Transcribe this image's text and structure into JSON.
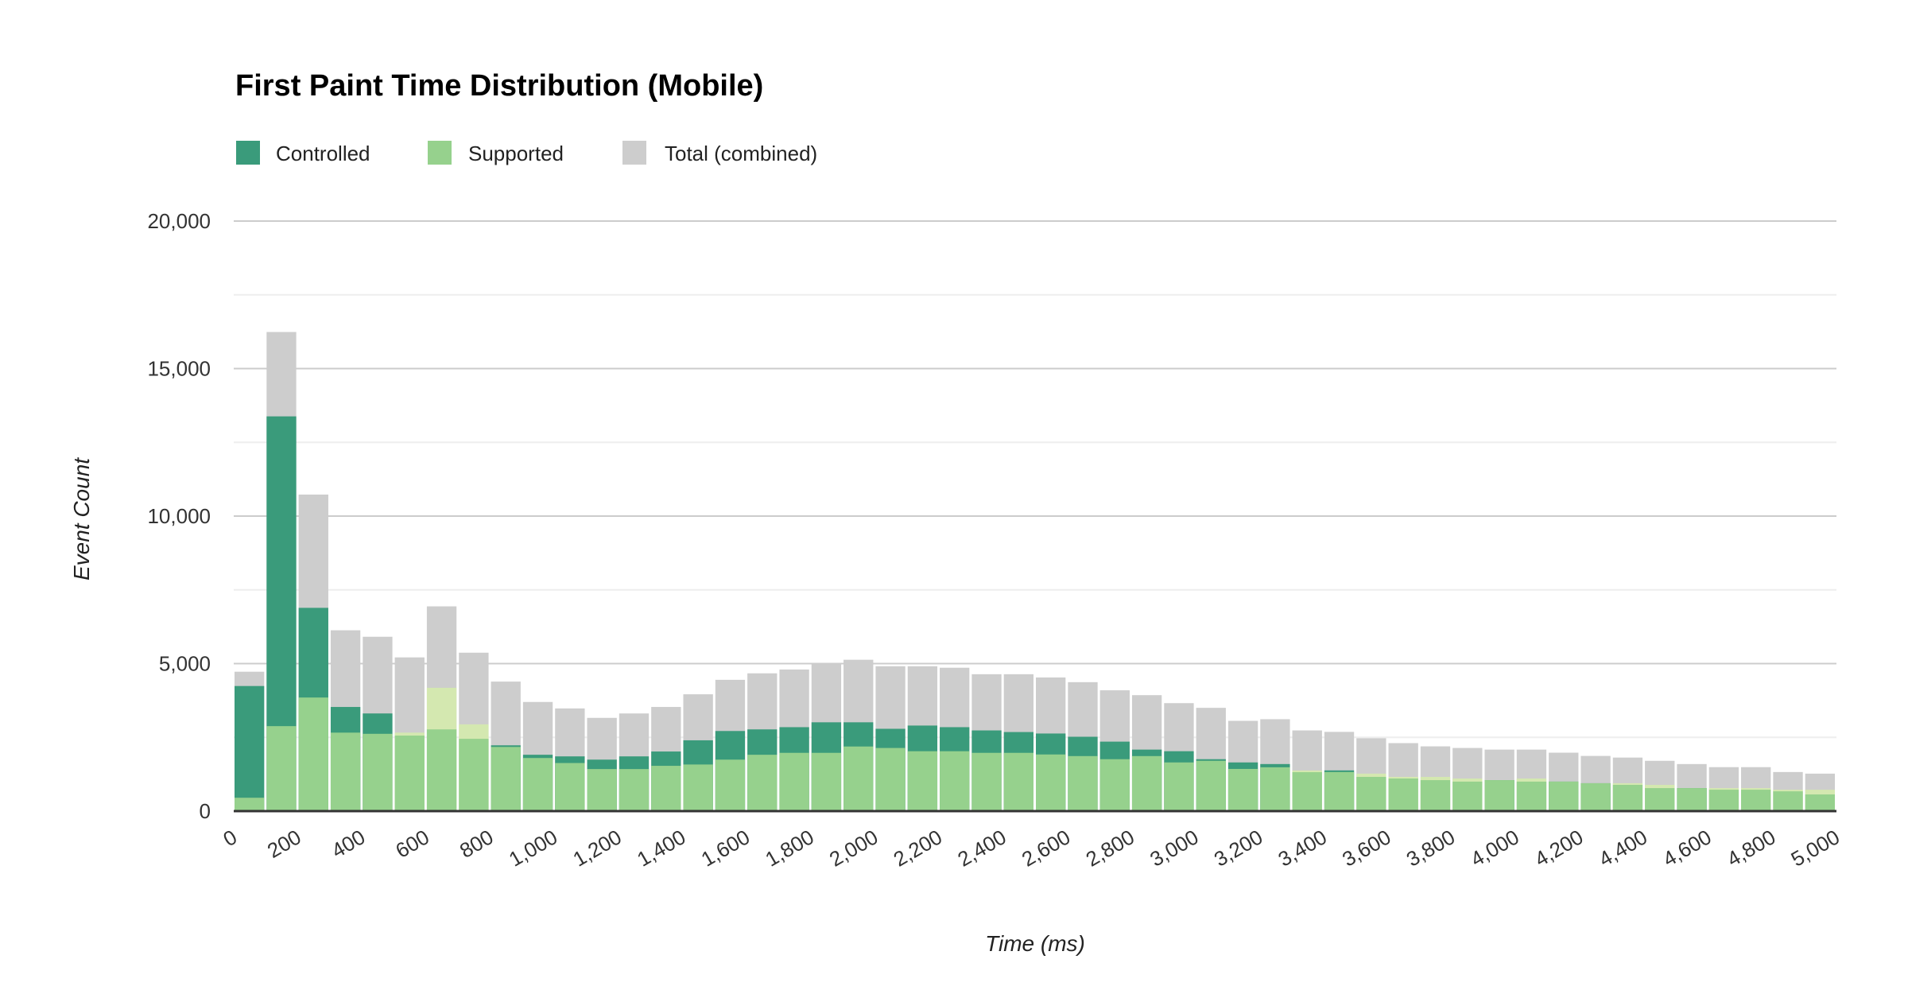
{
  "chart_data": {
    "type": "bar",
    "title": "First Paint Time Distribution (Mobile)",
    "xlabel": "Time (ms)",
    "ylabel": "Event Count",
    "xlim": [
      0,
      5000
    ],
    "ylim": [
      0,
      20000
    ],
    "bin_width": 100,
    "x_ticks": [
      "0",
      "200",
      "400",
      "600",
      "800",
      "1,000",
      "1,200",
      "1,400",
      "1,600",
      "1,800",
      "2,000",
      "2,200",
      "2,400",
      "2,600",
      "2,800",
      "3,000",
      "3,200",
      "3,400",
      "3,600",
      "3,800",
      "4,000",
      "4,200",
      "4,400",
      "4,600",
      "4,800",
      "5,000"
    ],
    "x_tick_values": [
      0,
      200,
      400,
      600,
      800,
      1000,
      1200,
      1400,
      1600,
      1800,
      2000,
      2200,
      2400,
      2600,
      2800,
      3000,
      3200,
      3400,
      3600,
      3800,
      4000,
      4200,
      4400,
      4600,
      4800,
      5000
    ],
    "y_ticks": [
      "0",
      "5,000",
      "10,000",
      "15,000",
      "20,000"
    ],
    "y_tick_values": [
      0,
      5000,
      10000,
      15000,
      20000
    ],
    "grid": true,
    "legend_position": "top-left",
    "bin_starts": [
      0,
      100,
      200,
      300,
      400,
      500,
      600,
      700,
      800,
      900,
      1000,
      1100,
      1200,
      1300,
      1400,
      1500,
      1600,
      1700,
      1800,
      1900,
      2000,
      2100,
      2200,
      2300,
      2400,
      2500,
      2600,
      2700,
      2800,
      2900,
      3000,
      3100,
      3200,
      3300,
      3400,
      3500,
      3600,
      3700,
      3800,
      3900,
      4000,
      4100,
      4200,
      4300,
      4400,
      4500,
      4600,
      4700,
      4800,
      4900
    ],
    "series": [
      {
        "name": "Controlled",
        "color": "#3a9b7b",
        "values": [
          4240,
          13380,
          6890,
          3530,
          3310,
          2560,
          2770,
          2450,
          2230,
          1910,
          1855,
          1745,
          1855,
          2020,
          2400,
          2715,
          2770,
          2845,
          3010,
          3010,
          2790,
          2900,
          2845,
          2735,
          2680,
          2630,
          2520,
          2355,
          2085,
          2030,
          1760,
          1650,
          1595,
          1320,
          1380,
          1160,
          1105,
          1050,
          1000,
          1050,
          1000,
          1000,
          945,
          890,
          780,
          780,
          725,
          725,
          670,
          565
        ]
      },
      {
        "name": "Supported",
        "color": "#96d18d",
        "values": [
          453,
          2880,
          3850,
          2660,
          2620,
          2660,
          4180,
          2940,
          2175,
          1800,
          1630,
          1425,
          1425,
          1535,
          1580,
          1745,
          1910,
          1975,
          1975,
          2190,
          2140,
          2030,
          2030,
          1975,
          1975,
          1920,
          1865,
          1760,
          1865,
          1650,
          1705,
          1430,
          1485,
          1375,
          1325,
          1270,
          1160,
          1160,
          1105,
          1050,
          1105,
          1000,
          945,
          945,
          890,
          780,
          780,
          780,
          725,
          725
        ]
      },
      {
        "name": "Total (combined)",
        "color": "#cdcdcd",
        "values": [
          4725,
          16240,
          10730,
          6130,
          5910,
          5210,
          6940,
          5370,
          4390,
          3700,
          3480,
          3160,
          3310,
          3530,
          3960,
          4450,
          4670,
          4800,
          5020,
          5130,
          4910,
          4910,
          4860,
          4640,
          4640,
          4530,
          4370,
          4095,
          3930,
          3660,
          3500,
          3060,
          3115,
          2735,
          2685,
          2470,
          2305,
          2195,
          2140,
          2085,
          2085,
          1980,
          1870,
          1815,
          1705,
          1595,
          1490,
          1490,
          1325,
          1270
        ]
      }
    ],
    "overlap_color": "#d4e8b0"
  }
}
